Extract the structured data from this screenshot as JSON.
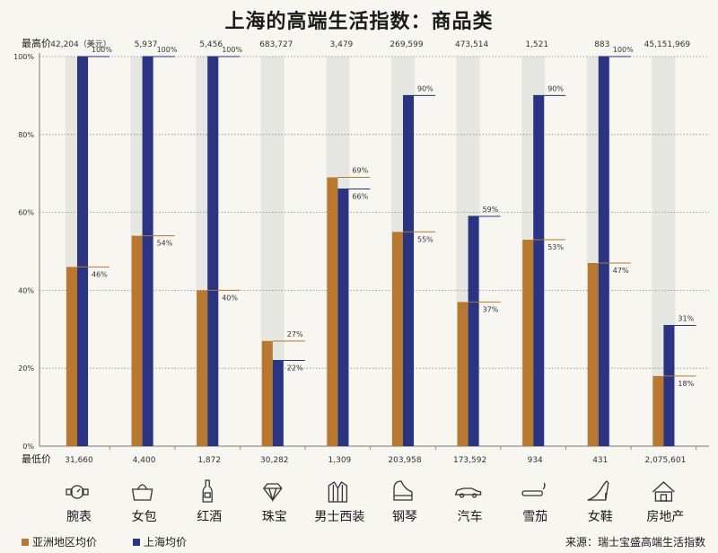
{
  "title": "上海的高端生活指数：商品类",
  "chart_data": {
    "type": "bar",
    "categories": [
      "腕表",
      "女包",
      "红酒",
      "珠宝",
      "男士西装",
      "钢琴",
      "汽车",
      "雪茄",
      "女鞋",
      "房地产"
    ],
    "series": [
      {
        "name": "亚洲地区均价",
        "values": [
          46,
          54,
          40,
          27,
          69,
          55,
          37,
          53,
          47,
          18
        ]
      },
      {
        "name": "上海均价",
        "values": [
          100,
          100,
          100,
          22,
          66,
          90,
          59,
          90,
          100,
          31
        ]
      }
    ],
    "value_labels": [
      [
        "46%",
        "54%",
        "40%",
        "27%",
        "69%",
        "55%",
        "37%",
        "53%",
        "47%",
        "18%"
      ],
      [
        "100%",
        "100%",
        "100%",
        "22%",
        "66%",
        "90%",
        "59%",
        "90%",
        "100%",
        "31%"
      ]
    ],
    "max_prices": [
      "42,204（美元）",
      "5,937",
      "5,456",
      "683,727",
      "3,479",
      "269,599",
      "473,514",
      "1,521",
      "883",
      "45,151,969"
    ],
    "min_prices": [
      "31,660",
      "4,400",
      "1,872",
      "30,282",
      "1,309",
      "203,958",
      "173,592",
      "934",
      "431",
      "2,075,601"
    ],
    "max_label": "最高价",
    "min_label": "最低价",
    "yticks": [
      "0%",
      "20%",
      "40%",
      "60%",
      "80%",
      "100%"
    ],
    "ylim": [
      0,
      100
    ],
    "icons": [
      "watch-icon",
      "handbag-icon",
      "wine-bottle-icon",
      "diamond-icon",
      "suit-icon",
      "piano-icon",
      "car-icon",
      "cigar-icon",
      "high-heel-icon",
      "house-icon"
    ],
    "colors": {
      "asia": "#b8782f",
      "shanghai": "#2a3480",
      "bg_column": "#e6e6e3",
      "axis": "#777777",
      "grid": "#888888"
    },
    "legend_position": "bottom-left"
  },
  "legend": {
    "asia": "亚洲地区均价",
    "shanghai": "上海均价"
  },
  "source": "来源：瑞士宝盛高端生活指数"
}
